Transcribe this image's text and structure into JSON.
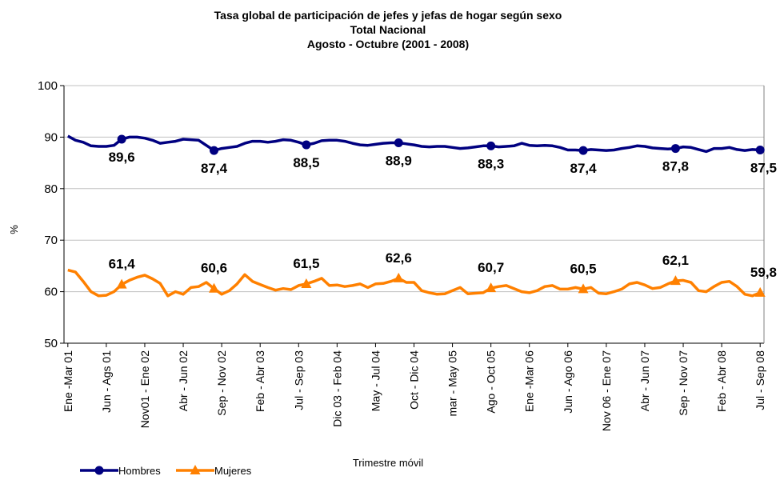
{
  "chart_data": {
    "type": "line",
    "title": [
      "Tasa global de participación de jefes y jefas de hogar según sexo",
      "Total Nacional",
      "Agosto - Octubre (2001 - 2008)"
    ],
    "x_label": "Trimestre móvil",
    "y_label": "%",
    "categories": [
      "Ene -Mar 01",
      null,
      null,
      null,
      null,
      "Jun - Ags 01",
      null,
      null,
      null,
      null,
      "Nov01 - Ene 02",
      null,
      null,
      null,
      null,
      "Abr - Jun 02",
      null,
      null,
      null,
      null,
      "Sep - Nov 02",
      null,
      null,
      null,
      null,
      "Feb - Abr 03",
      null,
      null,
      null,
      null,
      "Jul - Sep 03",
      null,
      null,
      null,
      null,
      "Dic 03 - Feb 04",
      null,
      null,
      null,
      null,
      "May - Jul 04",
      null,
      null,
      null,
      null,
      "Oct - Dic 04",
      null,
      null,
      null,
      null,
      "mar - May 05",
      null,
      null,
      null,
      null,
      "Ago - Oct 05",
      null,
      null,
      null,
      null,
      "Ene -Mar 06",
      null,
      null,
      null,
      null,
      "Jun - Ago 06",
      null,
      null,
      null,
      null,
      "Nov 06 - Ene 07",
      null,
      null,
      null,
      null,
      "Abr - Jun 07",
      null,
      null,
      null,
      null,
      "Sep - Nov 07",
      null,
      null,
      null,
      null,
      "Feb - Abr 08",
      null,
      null,
      null,
      null,
      "Jul - Sep 08"
    ],
    "series": [
      {
        "name": "Hombres",
        "color": "#000080",
        "marker": "circle",
        "label_position": "below",
        "values": [
          90.2,
          89.4,
          89.0,
          88.3,
          88.2,
          88.2,
          88.4,
          89.6,
          90.0,
          90.0,
          89.8,
          89.4,
          88.8,
          89.0,
          89.2,
          89.6,
          89.5,
          89.4,
          88.4,
          87.4,
          87.8,
          88.0,
          88.2,
          88.8,
          89.2,
          89.2,
          89.0,
          89.2,
          89.5,
          89.4,
          89.0,
          88.5,
          88.8,
          89.3,
          89.4,
          89.4,
          89.2,
          88.8,
          88.5,
          88.4,
          88.6,
          88.8,
          88.9,
          88.9,
          88.7,
          88.5,
          88.2,
          88.1,
          88.2,
          88.2,
          88.0,
          87.8,
          87.9,
          88.1,
          88.3,
          88.3,
          88.1,
          88.2,
          88.3,
          88.8,
          88.4,
          88.3,
          88.4,
          88.3,
          88.0,
          87.5,
          87.5,
          87.4,
          87.6,
          87.5,
          87.4,
          87.5,
          87.8,
          88.0,
          88.3,
          88.2,
          87.9,
          87.8,
          87.7,
          87.8,
          88.1,
          88.0,
          87.6,
          87.2,
          87.8,
          87.8,
          88.0,
          87.6,
          87.4,
          87.6,
          87.5
        ],
        "value_labels": [
          null,
          null,
          null,
          null,
          null,
          null,
          null,
          "89,6",
          null,
          null,
          null,
          null,
          null,
          null,
          null,
          null,
          null,
          null,
          null,
          "87,4",
          null,
          null,
          null,
          null,
          null,
          null,
          null,
          null,
          null,
          null,
          null,
          "88,5",
          null,
          null,
          null,
          null,
          null,
          null,
          null,
          null,
          null,
          null,
          null,
          "88,9",
          null,
          null,
          null,
          null,
          null,
          null,
          null,
          null,
          null,
          null,
          null,
          "88,3",
          null,
          null,
          null,
          null,
          null,
          null,
          null,
          null,
          null,
          null,
          null,
          "87,4",
          null,
          null,
          null,
          null,
          null,
          null,
          null,
          null,
          null,
          null,
          null,
          "87,8",
          null,
          null,
          null,
          null,
          null,
          null,
          null,
          null,
          null,
          null,
          "87,5"
        ]
      },
      {
        "name": "Mujeres",
        "color": "#FF8000",
        "marker": "triangle",
        "label_position": "above",
        "values": [
          64.2,
          63.8,
          62.0,
          60.0,
          59.2,
          59.3,
          60.0,
          61.4,
          62.2,
          62.8,
          63.2,
          62.5,
          61.6,
          59.2,
          60.0,
          59.5,
          60.8,
          61.0,
          61.8,
          60.6,
          59.5,
          60.2,
          61.5,
          63.3,
          62.0,
          61.4,
          60.8,
          60.3,
          60.6,
          60.4,
          61.2,
          61.5,
          62.0,
          62.6,
          61.2,
          61.3,
          61.0,
          61.2,
          61.5,
          60.8,
          61.5,
          61.6,
          62.0,
          62.6,
          61.8,
          61.8,
          60.2,
          59.8,
          59.5,
          59.6,
          60.2,
          60.8,
          59.6,
          59.7,
          59.8,
          60.7,
          61.0,
          61.2,
          60.6,
          60.0,
          59.8,
          60.2,
          61.0,
          61.2,
          60.5,
          60.5,
          60.8,
          60.5,
          60.8,
          59.7,
          59.6,
          60.0,
          60.5,
          61.5,
          61.8,
          61.3,
          60.6,
          60.8,
          61.5,
          62.1,
          62.2,
          61.8,
          60.2,
          60.0,
          61.0,
          61.8,
          62.0,
          61.0,
          59.5,
          59.2,
          59.8
        ],
        "value_labels": [
          null,
          null,
          null,
          null,
          null,
          null,
          null,
          "61,4",
          null,
          null,
          null,
          null,
          null,
          null,
          null,
          null,
          null,
          null,
          null,
          "60,6",
          null,
          null,
          null,
          null,
          null,
          null,
          null,
          null,
          null,
          null,
          null,
          "61,5",
          null,
          null,
          null,
          null,
          null,
          null,
          null,
          null,
          null,
          null,
          null,
          "62,6",
          null,
          null,
          null,
          null,
          null,
          null,
          null,
          null,
          null,
          null,
          null,
          "60,7",
          null,
          null,
          null,
          null,
          null,
          null,
          null,
          null,
          null,
          null,
          null,
          "60,5",
          null,
          null,
          null,
          null,
          null,
          null,
          null,
          null,
          null,
          null,
          null,
          "62,1",
          null,
          null,
          null,
          null,
          null,
          null,
          null,
          null,
          null,
          null,
          "59,8"
        ]
      }
    ],
    "ylim": [
      50,
      100
    ],
    "yticks": [
      50,
      60,
      70,
      80,
      90,
      100
    ],
    "grid": true,
    "legend": "bottom-left"
  }
}
